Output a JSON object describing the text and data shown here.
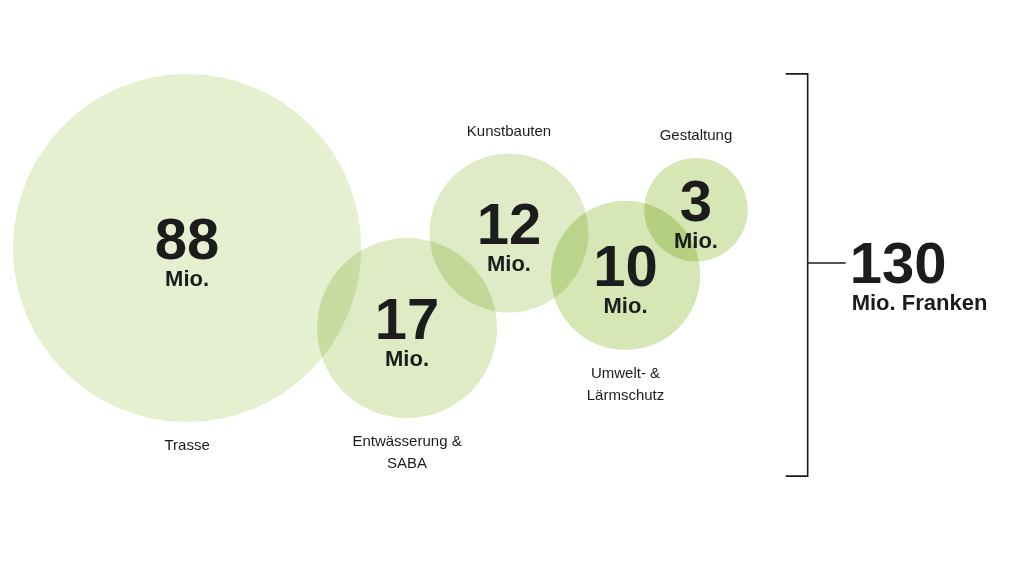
{
  "chart_data": {
    "type": "other",
    "categories": [
      "Trasse",
      "Entwässerung & SABA",
      "Kunstbauten",
      "Umwelt- & Lärmschutz",
      "Gestaltung"
    ],
    "values": [
      88,
      17,
      12,
      10,
      3
    ],
    "value_labels": [
      "88 Mio.",
      "17 Mio.",
      "12 Mio.",
      "10 Mio.",
      "3 Mio."
    ],
    "colors": [
      "#e5f0d0",
      "#deebc4",
      "#dfebc6",
      "#d6e6b4",
      "#d6e6b4"
    ],
    "annotations": [
      "130 Mio. Franken"
    ]
  }
}
